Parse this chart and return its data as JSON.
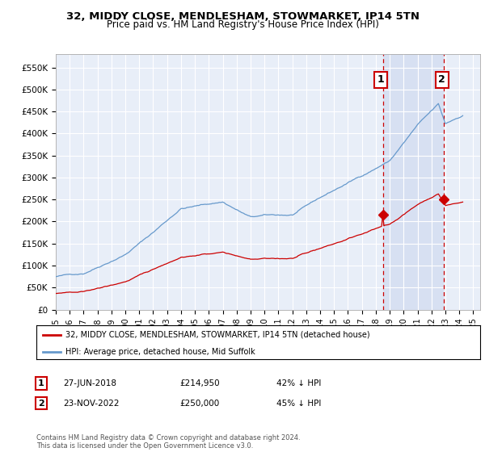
{
  "title": "32, MIDDY CLOSE, MENDLESHAM, STOWMARKET, IP14 5TN",
  "subtitle": "Price paid vs. HM Land Registry's House Price Index (HPI)",
  "background_color": "#ffffff",
  "plot_bg_color": "#e8eef8",
  "plot_bg_color2": "#dde6f5",
  "grid_color": "#ffffff",
  "hpi_color": "#6699cc",
  "price_color": "#cc0000",
  "marker1_date": 2018.5,
  "marker1_price": 214950,
  "marker2_date": 2022.9,
  "marker2_price": 250000,
  "ylim": [
    0,
    580000
  ],
  "xlim": [
    1995.0,
    2025.5
  ],
  "yticks": [
    0,
    50000,
    100000,
    150000,
    200000,
    250000,
    300000,
    350000,
    400000,
    450000,
    500000,
    550000
  ],
  "ytick_labels": [
    "£0",
    "£50K",
    "£100K",
    "£150K",
    "£200K",
    "£250K",
    "£300K",
    "£350K",
    "£400K",
    "£450K",
    "£500K",
    "£550K"
  ],
  "xticks": [
    1995,
    1996,
    1997,
    1998,
    1999,
    2000,
    2001,
    2002,
    2003,
    2004,
    2005,
    2006,
    2007,
    2008,
    2009,
    2010,
    2011,
    2012,
    2013,
    2014,
    2015,
    2016,
    2017,
    2018,
    2019,
    2020,
    2021,
    2022,
    2023,
    2024,
    2025
  ],
  "legend_price_label": "32, MIDDY CLOSE, MENDLESHAM, STOWMARKET, IP14 5TN (detached house)",
  "legend_hpi_label": "HPI: Average price, detached house, Mid Suffolk",
  "table_rows": [
    {
      "num": "1",
      "date": "27-JUN-2018",
      "price": "£214,950",
      "hpi": "42% ↓ HPI"
    },
    {
      "num": "2",
      "date": "23-NOV-2022",
      "price": "£250,000",
      "hpi": "45% ↓ HPI"
    }
  ],
  "footer": "Contains HM Land Registry data © Crown copyright and database right 2024.\nThis data is licensed under the Open Government Licence v3.0."
}
